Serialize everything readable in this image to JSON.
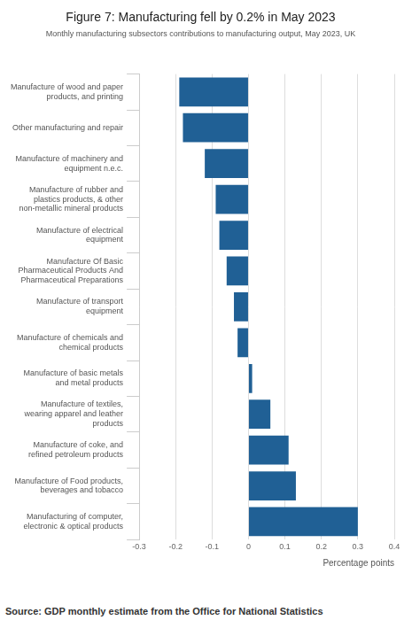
{
  "chart_data": {
    "type": "bar",
    "orientation": "horizontal",
    "title": "Figure 7: Manufacturing fell by 0.2% in May 2023",
    "subtitle": "Monthly manufacturing subsectors contributions to manufacturing output, May 2023, UK",
    "x_label": "Percentage points",
    "source": "Source: GDP monthly estimate from the Office for National Statistics",
    "categories": [
      "Manufacture of wood and paper products, and printing",
      "Other manufacturing and repair",
      "Manufacture of machinery and equipment n.e.c.",
      "Manufacture of rubber and plastics products, & other non-metallic mineral products",
      "Manufacture of electrical equipment",
      "Manufacture Of Basic Pharmaceutical Products And Pharmaceutical Preparations",
      "Manufacture of transport equipment",
      "Manufacture of chemicals and chemical products",
      "Manufacture of basic metals and metal products",
      "Manufacture of textiles, wearing apparel and leather products",
      "Manufacture of coke, and refined petroleum products",
      "Manufacture of Food products, beverages and tobacco",
      "Manufacturing of computer, electronic & optical products"
    ],
    "values": [
      -0.19,
      -0.18,
      -0.12,
      -0.09,
      -0.08,
      -0.06,
      -0.04,
      -0.03,
      0.01,
      0.06,
      0.11,
      0.13,
      0.3
    ],
    "color": "#206095",
    "xlim": [
      -0.3,
      0.4
    ],
    "xticks": [
      -0.3,
      -0.2,
      -0.1,
      0,
      0.1,
      0.2,
      0.3,
      0.4
    ],
    "grid": true
  }
}
